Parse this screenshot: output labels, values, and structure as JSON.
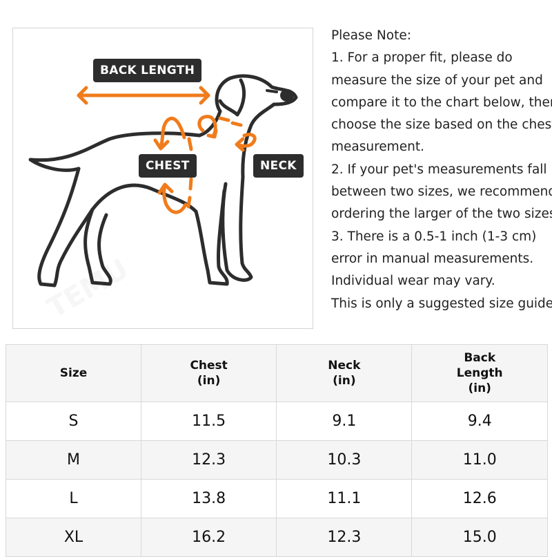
{
  "diagram": {
    "labels": {
      "back_length": "BACK LENGTH",
      "chest": "CHEST",
      "neck": "NECK"
    },
    "colors": {
      "accent": "#f07c1c",
      "outline": "#2d2d2d"
    },
    "watermark": "TEMU"
  },
  "notes": {
    "lines": [
      "Please Note:",
      "1. For a proper fit, please do",
      "measure the size of your pet and",
      "compare it to the chart below, then",
      "choose the size based on the chest",
      "measurement.",
      "2. If your pet's measurements fall",
      "between two sizes, we recommend",
      "ordering the larger of the two sizes.",
      "3. There is a 0.5-1 inch (1-3 cm)",
      "error in manual measurements.",
      "Individual wear may vary.",
      "This is only a suggested size guide."
    ]
  },
  "table": {
    "headers": [
      [
        "Size"
      ],
      [
        "Chest",
        "(in)"
      ],
      [
        "Neck",
        "(in)"
      ],
      [
        "Back",
        "Length",
        "(in)"
      ]
    ],
    "rows": [
      [
        "S",
        "11.5",
        "9.1",
        "9.4"
      ],
      [
        "M",
        "12.3",
        "10.3",
        "11.0"
      ],
      [
        "L",
        "13.8",
        "11.1",
        "12.6"
      ],
      [
        "XL",
        "16.2",
        "12.3",
        "15.0"
      ]
    ]
  }
}
